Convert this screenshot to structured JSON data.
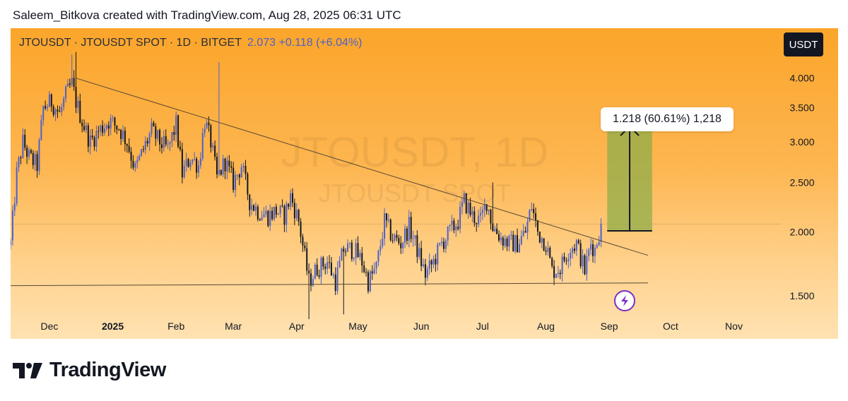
{
  "header": {
    "attribution": "Saleem_Bitkova created with TradingView.com, Aug 28, 2025 06:31 UTC"
  },
  "legend": {
    "symbol_line": "JTOUSDT · JTOUSDT SPOT · 1D · BITGET",
    "last_value": "2.073 +0.118 (+6.04%)"
  },
  "unit_badge": "USDT",
  "measure_label": "1.218 (60.61%) 1,218",
  "watermark": {
    "line1": "JTOUSDT, 1D",
    "line2": "JTOUSDT SPOT"
  },
  "brand": {
    "name": "TradingView"
  },
  "colors": {
    "candle_up": "#4d60c9",
    "candle_down": "#131722",
    "measure_fill": "#8fae4a",
    "lightning": "#7b2ec7",
    "trendline": "#5a4a34"
  },
  "icons": [
    "lightning-icon",
    "tradingview-logo-icon"
  ],
  "chart_data": {
    "type": "candlestick",
    "title": "JTOUSDT · JTOUSDT SPOT · 1D · BITGET",
    "ylabel": "USDT",
    "y_scale": "log",
    "ylim": [
      1.3,
      4.7
    ],
    "x_range": [
      "2024-11-12",
      "2025-11-24"
    ],
    "yticks": [
      "4.000",
      "3.500",
      "3.000",
      "2.500",
      "2.000",
      "1.500"
    ],
    "xticks": [
      {
        "label": "Dec",
        "date": "2024-12-01"
      },
      {
        "label": "2025",
        "date": "2025-01-01"
      },
      {
        "label": "Feb",
        "date": "2025-02-01"
      },
      {
        "label": "Mar",
        "date": "2025-03-01"
      },
      {
        "label": "Apr",
        "date": "2025-04-01"
      },
      {
        "label": "May",
        "date": "2025-05-01"
      },
      {
        "label": "Jun",
        "date": "2025-06-01"
      },
      {
        "label": "Jul",
        "date": "2025-07-01"
      },
      {
        "label": "Aug",
        "date": "2025-08-01"
      },
      {
        "label": "Sep",
        "date": "2025-09-01"
      },
      {
        "label": "Oct",
        "date": "2025-10-01"
      },
      {
        "label": "Nov",
        "date": "2025-11-01"
      }
    ],
    "price_path": [
      [
        "2024-11-12",
        1.9
      ],
      [
        "2024-11-15",
        2.6
      ],
      [
        "2024-11-18",
        3.0
      ],
      [
        "2024-11-21",
        2.8
      ],
      [
        "2024-11-25",
        2.7
      ],
      [
        "2024-11-28",
        3.5
      ],
      [
        "2024-12-02",
        3.6
      ],
      [
        "2024-12-06",
        3.4
      ],
      [
        "2024-12-09",
        3.7
      ],
      [
        "2024-12-12",
        3.9
      ],
      [
        "2024-12-14",
        3.6
      ],
      [
        "2024-12-17",
        3.3
      ],
      [
        "2024-12-21",
        3.0
      ],
      [
        "2024-12-25",
        3.15
      ],
      [
        "2024-12-30",
        3.3
      ],
      [
        "2025-01-04",
        3.2
      ],
      [
        "2025-01-08",
        3.0
      ],
      [
        "2025-01-12",
        2.65
      ],
      [
        "2025-01-16",
        2.9
      ],
      [
        "2025-01-20",
        3.15
      ],
      [
        "2025-01-24",
        3.0
      ],
      [
        "2025-01-28",
        2.9
      ],
      [
        "2025-02-01",
        3.25
      ],
      [
        "2025-02-04",
        2.6
      ],
      [
        "2025-02-08",
        2.8
      ],
      [
        "2025-02-12",
        2.7
      ],
      [
        "2025-02-15",
        3.3
      ],
      [
        "2025-02-18",
        3.0
      ],
      [
        "2025-02-21",
        2.55
      ],
      [
        "2025-02-25",
        2.75
      ],
      [
        "2025-03-01",
        2.5
      ],
      [
        "2025-03-05",
        2.7
      ],
      [
        "2025-03-09",
        2.3
      ],
      [
        "2025-03-13",
        2.2
      ],
      [
        "2025-03-18",
        2.15
      ],
      [
        "2025-03-22",
        2.2
      ],
      [
        "2025-03-26",
        2.15
      ],
      [
        "2025-03-29",
        2.35
      ],
      [
        "2025-04-02",
        2.1
      ],
      [
        "2025-04-07",
        1.6
      ],
      [
        "2025-04-11",
        1.7
      ],
      [
        "2025-04-16",
        1.75
      ],
      [
        "2025-04-20",
        1.6
      ],
      [
        "2025-04-24",
        1.85
      ],
      [
        "2025-04-29",
        1.85
      ],
      [
        "2025-05-03",
        1.75
      ],
      [
        "2025-05-06",
        1.6
      ],
      [
        "2025-05-10",
        1.7
      ],
      [
        "2025-05-14",
        2.1
      ],
      [
        "2025-05-18",
        1.95
      ],
      [
        "2025-05-22",
        1.9
      ],
      [
        "2025-05-26",
        2.05
      ],
      [
        "2025-05-30",
        1.85
      ],
      [
        "2025-06-03",
        1.65
      ],
      [
        "2025-06-07",
        1.75
      ],
      [
        "2025-06-11",
        1.9
      ],
      [
        "2025-06-15",
        2.0
      ],
      [
        "2025-06-19",
        2.1
      ],
      [
        "2025-06-22",
        2.3
      ],
      [
        "2025-06-26",
        2.15
      ],
      [
        "2025-06-30",
        2.1
      ],
      [
        "2025-07-03",
        2.3
      ],
      [
        "2025-07-06",
        2.05
      ],
      [
        "2025-07-10",
        1.95
      ],
      [
        "2025-07-14",
        1.9
      ],
      [
        "2025-07-18",
        1.9
      ],
      [
        "2025-07-22",
        2.0
      ],
      [
        "2025-07-25",
        2.25
      ],
      [
        "2025-07-28",
        2.0
      ],
      [
        "2025-08-01",
        1.9
      ],
      [
        "2025-08-04",
        1.68
      ],
      [
        "2025-08-08",
        1.7
      ],
      [
        "2025-08-12",
        1.85
      ],
      [
        "2025-08-16",
        1.9
      ],
      [
        "2025-08-20",
        1.68
      ],
      [
        "2025-08-23",
        1.9
      ],
      [
        "2025-08-25",
        1.85
      ],
      [
        "2025-08-28",
        2.073
      ]
    ],
    "spikes": [
      {
        "date": "2024-12-12",
        "high": 4.45
      },
      {
        "date": "2024-12-14",
        "high": 4.5
      },
      {
        "date": "2025-02-22",
        "high": 4.3
      },
      {
        "date": "2025-04-07",
        "low": 1.35
      },
      {
        "date": "2025-04-24",
        "low": 1.38
      },
      {
        "date": "2025-07-06",
        "high": 2.5
      }
    ],
    "last": {
      "value": 2.073,
      "change": 0.118,
      "change_pct": 6.04
    },
    "trendlines": [
      {
        "from": [
          "2024-12-14",
          4.0
        ],
        "to": [
          "2025-09-20",
          1.8
        ]
      },
      {
        "from": [
          "2024-11-12",
          1.57
        ],
        "to": [
          "2025-09-20",
          1.59
        ]
      }
    ],
    "reference_line": 2.073,
    "measure": {
      "from_date": "2025-08-31",
      "to_date": "2025-09-22",
      "from_price": 2.01,
      "to_price": 3.228,
      "change": 1.218,
      "change_pct": 60.61,
      "label": "1.218 (60.61%) 1,218"
    },
    "grid": false,
    "legend_position": "top-left"
  }
}
